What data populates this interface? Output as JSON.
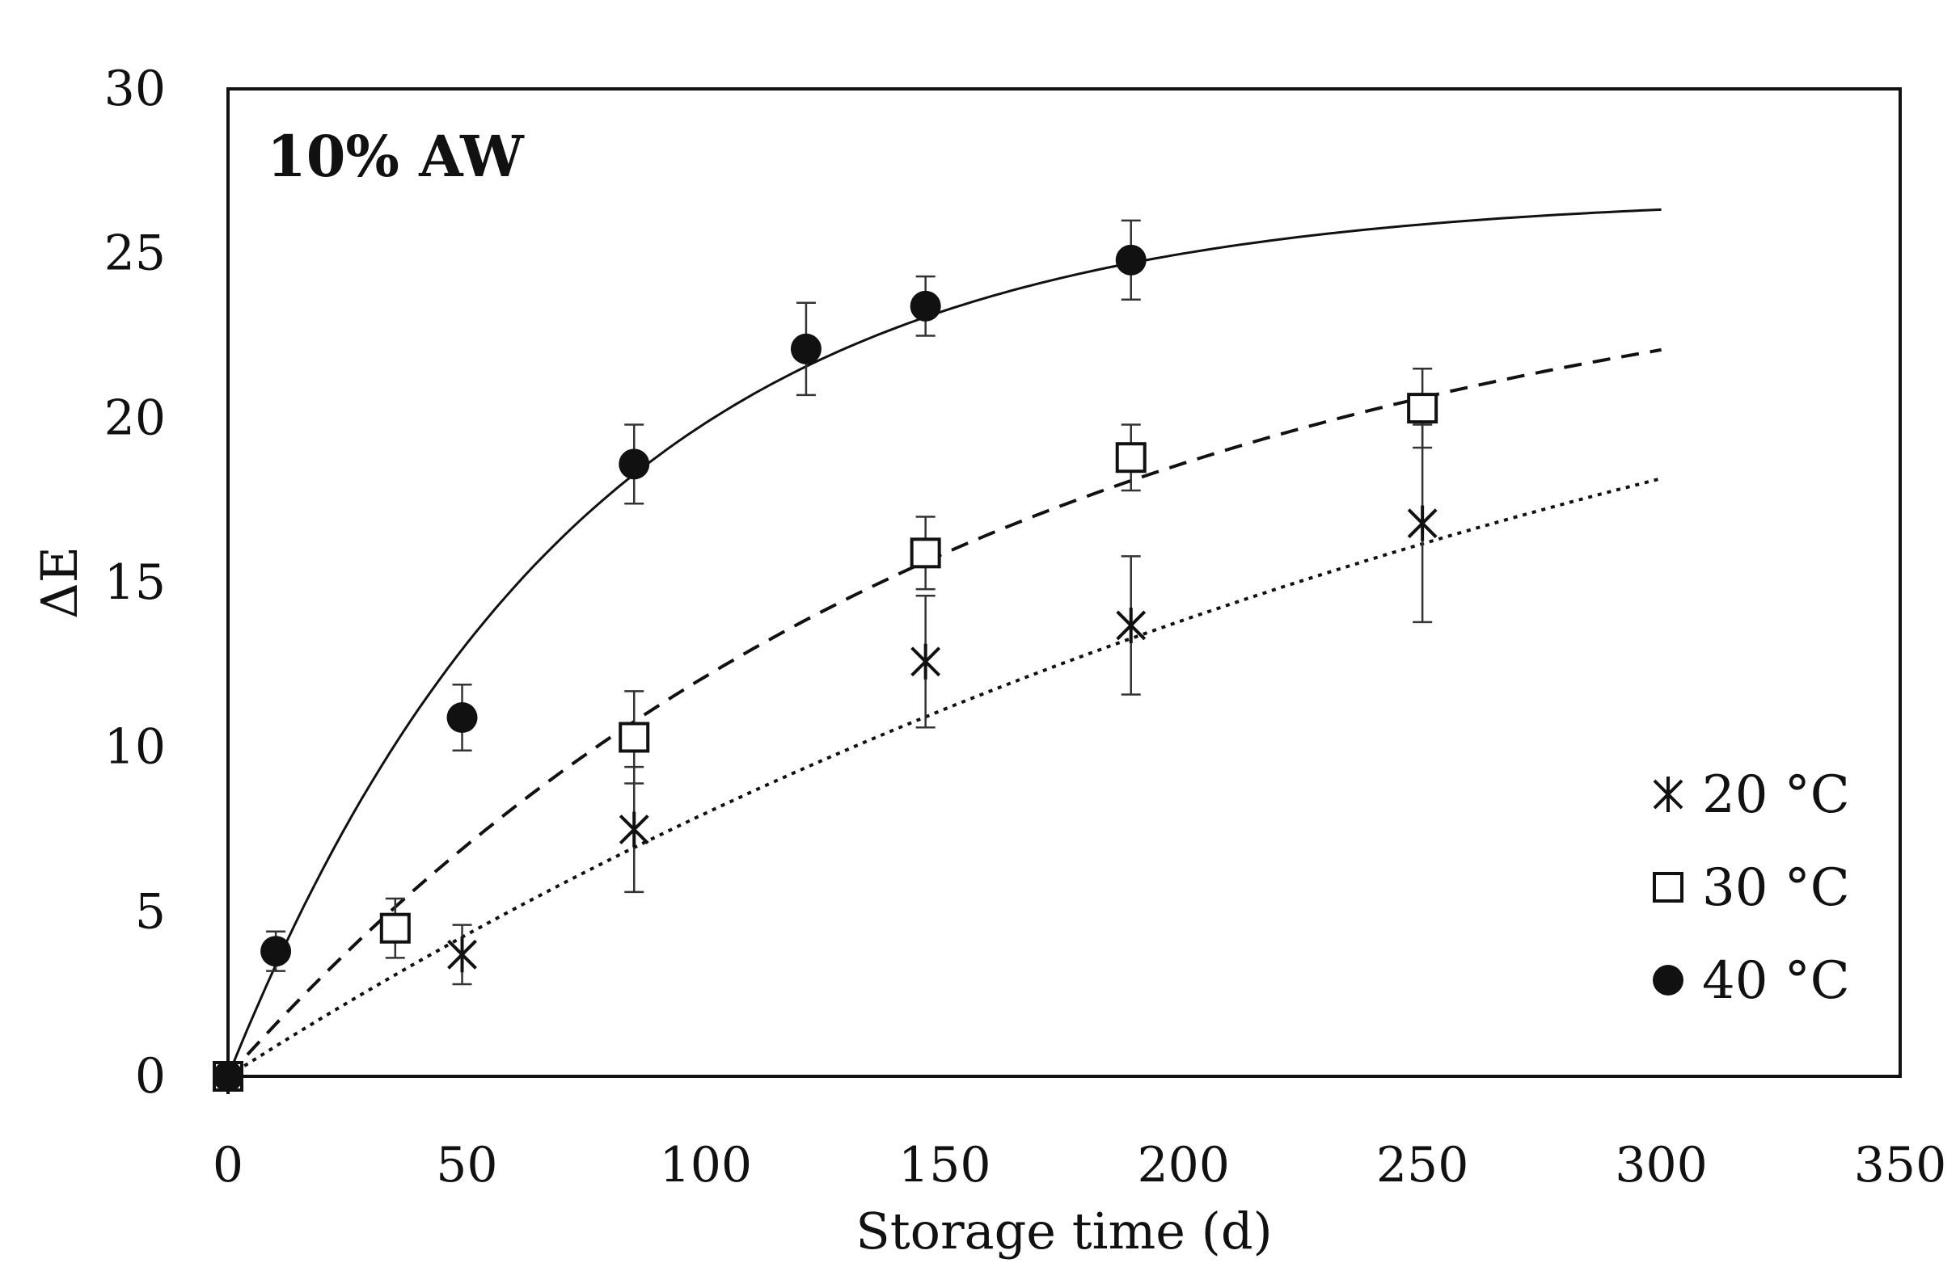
{
  "chart_data": {
    "type": "scatter",
    "panel_label": "10% AW",
    "xlabel": "Storage time (d)",
    "ylabel": "ΔE",
    "xlim": [
      0,
      350
    ],
    "ylim": [
      0,
      30
    ],
    "x_ticks": [
      0,
      50,
      100,
      150,
      200,
      250,
      300,
      350
    ],
    "y_ticks": [
      0,
      5,
      10,
      15,
      20,
      25,
      30
    ],
    "x_tick_labels": [
      "0",
      "50",
      "100",
      "150",
      "200",
      "250",
      "300",
      "350"
    ],
    "y_tick_labels": [
      "0",
      "5",
      "10",
      "15",
      "20",
      "25",
      "30"
    ],
    "legend_position": "bottom-right",
    "series": [
      {
        "name": "20 °C",
        "marker": "star",
        "line_style": "dotted",
        "points": [
          {
            "x": 0,
            "y": 0,
            "err": 0
          },
          {
            "x": 49,
            "y": 3.7,
            "err": 0.9
          },
          {
            "x": 85,
            "y": 7.5,
            "err": 1.9
          },
          {
            "x": 146,
            "y": 12.6,
            "err": 2.0
          },
          {
            "x": 189,
            "y": 13.7,
            "err": 2.1
          },
          {
            "x": 250,
            "y": 16.8,
            "err": 3.0
          }
        ],
        "fit": {
          "model": "first-order",
          "a": 30,
          "k": 0.0031,
          "x_max": 300
        }
      },
      {
        "name": "30 °C",
        "marker": "open-square",
        "line_style": "dashed",
        "points": [
          {
            "x": 0,
            "y": 0,
            "err": 0
          },
          {
            "x": 35,
            "y": 4.5,
            "err": 0.9
          },
          {
            "x": 85,
            "y": 10.3,
            "err": 1.4
          },
          {
            "x": 146,
            "y": 15.9,
            "err": 1.1
          },
          {
            "x": 189,
            "y": 18.8,
            "err": 1.0
          },
          {
            "x": 250,
            "y": 20.3,
            "err": 1.2
          }
        ],
        "fit": {
          "model": "first-order",
          "a": 26,
          "k": 0.0063,
          "x_max": 300
        }
      },
      {
        "name": "40 °C",
        "marker": "filled-circle",
        "line_style": "solid",
        "points": [
          {
            "x": 0,
            "y": 0,
            "err": 0
          },
          {
            "x": 10,
            "y": 3.8,
            "err": 0.6
          },
          {
            "x": 49,
            "y": 10.9,
            "err": 1.0
          },
          {
            "x": 85,
            "y": 18.6,
            "err": 1.2
          },
          {
            "x": 121,
            "y": 22.1,
            "err": 1.4
          },
          {
            "x": 146,
            "y": 23.4,
            "err": 0.9
          },
          {
            "x": 189,
            "y": 24.8,
            "err": 1.2
          }
        ],
        "fit": {
          "model": "first-order",
          "a": 26.8,
          "k": 0.0135,
          "x_max": 300
        }
      }
    ]
  }
}
